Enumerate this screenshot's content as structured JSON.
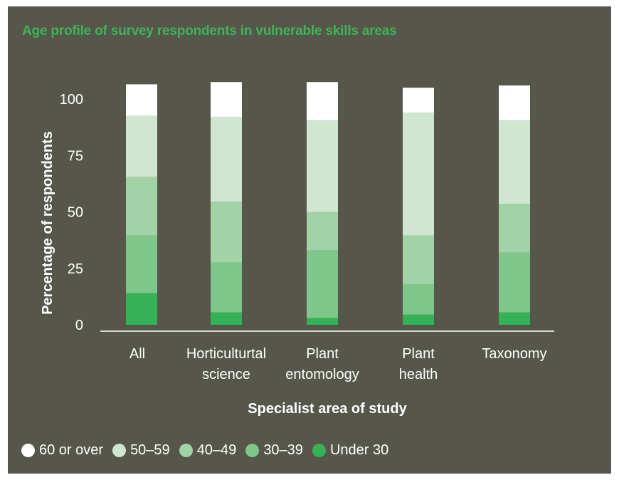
{
  "chart_data": {
    "type": "bar",
    "stacked": true,
    "title": "Age profile of survey respondents in vulnerable skills areas",
    "xlabel": "Specialist area of study",
    "ylabel": "Percentage of respondents",
    "ylim": [
      0,
      100
    ],
    "yticks": [
      "0",
      "25",
      "50",
      "75",
      "100"
    ],
    "grid": false,
    "legend_position": "bottom",
    "categories": [
      [
        "All"
      ],
      [
        "Horticulturtal",
        "science"
      ],
      [
        "Plant",
        "entomology"
      ],
      [
        "Plant",
        "health"
      ],
      [
        "Taxonomy"
      ]
    ],
    "series": [
      {
        "name": "Under 30",
        "color": "#35b256",
        "values": [
          14,
          5.5,
          3,
          4.5,
          5.5
        ]
      },
      {
        "name": "30–39",
        "color": "#7fc68a",
        "values": [
          25.5,
          22,
          30,
          13.5,
          26.5
        ]
      },
      {
        "name": "40–49",
        "color": "#a2d3a6",
        "values": [
          26,
          27,
          17,
          21.5,
          21.5
        ]
      },
      {
        "name": "50–59",
        "color": "#cfe6d1",
        "values": [
          27,
          37.5,
          40.5,
          54.5,
          37
        ]
      },
      {
        "name": "60 or over",
        "color": "#ffffff",
        "values": [
          14,
          15.5,
          17,
          11,
          15.5
        ]
      }
    ]
  },
  "legend_order": [
    "60 or over",
    "50–59",
    "40–49",
    "30–39",
    "Under 30"
  ]
}
